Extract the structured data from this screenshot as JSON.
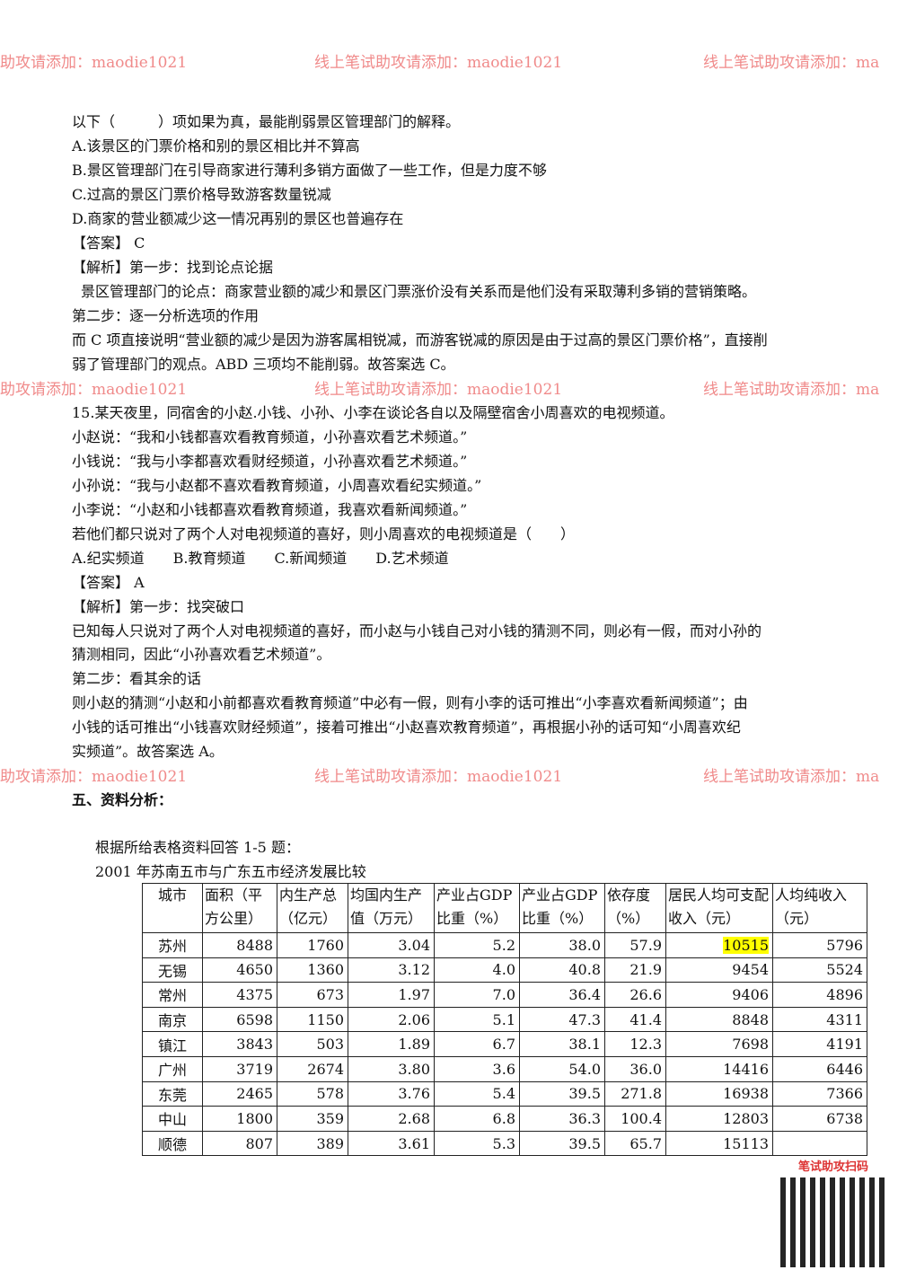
{
  "lines": [
    "以下（　　　）项如果为真，最能削弱景区管理部门的解释。",
    "A.该景区的门票价格和别的景区相比并不算高",
    "B.景区管理部门在引导商家进行薄利多销方面做了一些工作，但是力度不够",
    "C.过高的景区门票价格导致游客数量锐减",
    "D.商家的营业额减少这一情况再别的景区也普遍存在",
    "【答案】 C",
    "【解析】第一步：找到论点论据",
    "景区管理部门的论点：商家营业额的减少和景区门票涨价没有关系而是他们没有采取薄利多销的营销策略。",
    "第二步：逐一分析选项的作用",
    "而 C 项直接说明“营业额的减少是因为游客属相锐减，而游客锐减的原因是由于过高的景区门票价格”，直接削",
    "弱了管理部门的观点。ABD 三项均不能削弱。故答案选 C。",
    "15.某天夜里，同宿舍的小赵.小钱、小孙、小李在谈论各自以及隔壁宿舍小周喜欢的电视频道。",
    "小赵说：“我和小钱都喜欢看教育频道，小孙喜欢看艺术频道。”",
    "小钱说：“我与小李都喜欢看财经频道，小孙喜欢看艺术频道。”",
    "小孙说：“我与小赵都不喜欢看教育频道，小周喜欢看纪实频道。”",
    "小李说：“小赵和小钱都喜欢看教育频道，我喜欢看新闻频道。”",
    "若他们都只说对了两个人对电视频道的喜好，则小周喜欢的电视频道是（　　）",
    "A.纪实频道　　B.教育频道　　C.新闻频道　　D.艺术频道",
    "【答案】 A",
    "【解析】第一步：找突破口",
    "已知每人只说对了两个人对电视频道的喜好，而小赵与小钱自己对小钱的猜测不同，则必有一假，而对小孙的",
    "猜测相同，因此“小孙喜欢看艺术频道”。",
    "第二步：看其余的话",
    "则小赵的猜测“小赵和小前都喜欢看教育频道”中必有一假，则有小李的话可推出“小李喜欢看新闻频道”；由",
    "小钱的话可推出“小钱喜欢财经频道”，接着可推出“小赵喜欢教育频道”，再根据小孙的话可知“小周喜欢纪",
    "实频道”。故答案选 A。",
    "五、资料分析：",
    "根据所给表格资料回答 1-5 题：",
    "2001 年苏南五市与广东五市经济发展比较"
  ],
  "table": {
    "headers": [
      "城市",
      "面积（平方公里）",
      "内生产总（亿元）",
      "均国内生产值（万元）",
      "产业占GDP比重（%）",
      "产业占GDP比重（%）",
      "依存度（%）",
      "居民人均可支配收入（元）",
      "人均纯收入（元）"
    ],
    "rows": [
      [
        "苏州",
        "8488",
        "1760",
        "3.04",
        "5.2",
        "38.0",
        "57.9",
        "10515",
        "5796"
      ],
      [
        "无锡",
        "4650",
        "1360",
        "3.12",
        "4.0",
        "40.8",
        "21.9",
        "9454",
        "5524"
      ],
      [
        "常州",
        "4375",
        "673",
        "1.97",
        "7.0",
        "36.4",
        "26.6",
        "9406",
        "4896"
      ],
      [
        "南京",
        "6598",
        "1150",
        "2.06",
        "5.1",
        "47.3",
        "41.4",
        "8848",
        "4311"
      ],
      [
        "镇江",
        "3843",
        "503",
        "1.89",
        "6.7",
        "38.1",
        "12.3",
        "7698",
        "4191"
      ],
      [
        "广州",
        "3719",
        "2674",
        "3.80",
        "3.6",
        "54.0",
        "36.0",
        "14416",
        "6446"
      ],
      [
        "东莞",
        "2465",
        "578",
        "3.76",
        "5.4",
        "39.5",
        "271.8",
        "16938",
        "7366"
      ],
      [
        "中山",
        "1800",
        "359",
        "2.68",
        "6.8",
        "36.3",
        "100.4",
        "12803",
        "6738"
      ],
      [
        "顺德",
        "807",
        "389",
        "3.61",
        "5.3",
        "39.5",
        "65.7",
        "15113",
        ""
      ]
    ],
    "highlight_color": "#ffff00"
  },
  "watermarks": [
    "助攻请添加：maodie1021",
    "线上笔试助攻请添加：maodie1021",
    "线上笔试助攻请添加：ma"
  ],
  "qr": {
    "label": "笔试助攻扫码"
  }
}
